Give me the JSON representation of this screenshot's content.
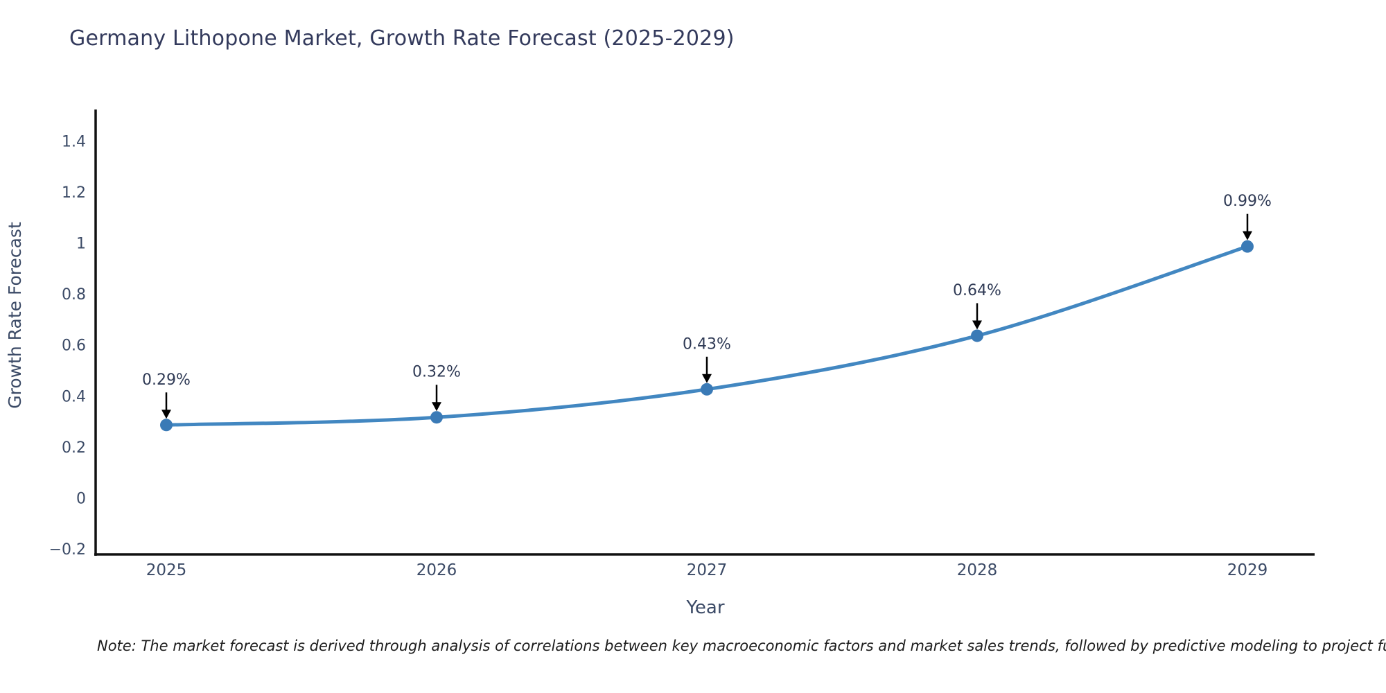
{
  "page": {
    "title": "Germany Lithopone Market, Growth Rate Forecast (2025-2029)",
    "note": "Note: The market forecast is derived through analysis of correlations between key macroeconomic factors and market sales trends, followed by predictive modeling to project future sales"
  },
  "chart_data": {
    "type": "line",
    "title": "Germany Lithopone Market, Growth Rate Forecast (2025-2029)",
    "x": [
      "2025",
      "2026",
      "2027",
      "2028",
      "2029"
    ],
    "series": [
      {
        "name": "Growth Rate Forecast",
        "values": [
          0.29,
          0.32,
          0.43,
          0.64,
          0.99
        ]
      }
    ],
    "point_labels": [
      "0.29%",
      "0.32%",
      "0.43%",
      "0.64%",
      "0.99%"
    ],
    "xlabel": "Year",
    "ylabel": "Growth Rate Forecast",
    "ylim": [
      -0.2,
      1.4
    ],
    "ytick_values": [
      -0.2,
      0,
      0.2,
      0.4,
      0.6,
      0.8,
      1,
      1.2,
      1.4
    ],
    "ytick_labels": [
      "−0.2",
      "0",
      "0.2",
      "0.4",
      "0.6",
      "0.8",
      "1",
      "1.2",
      "1.4"
    ],
    "grid": false,
    "legend_position": "none",
    "line_shape": "spline",
    "annotation_style": "arrow-down",
    "colors": {
      "line": "#4287c1",
      "marker": "#3a7ab6",
      "axis": "#111111",
      "tick_text": "#3b4a66",
      "axis_label_text": "#3b4a66",
      "title_text": "#333a5c",
      "annotation_text": "#2f3a55",
      "arrow": "#000000",
      "note_text": "#1d1d1d",
      "background": "#ffffff"
    }
  }
}
